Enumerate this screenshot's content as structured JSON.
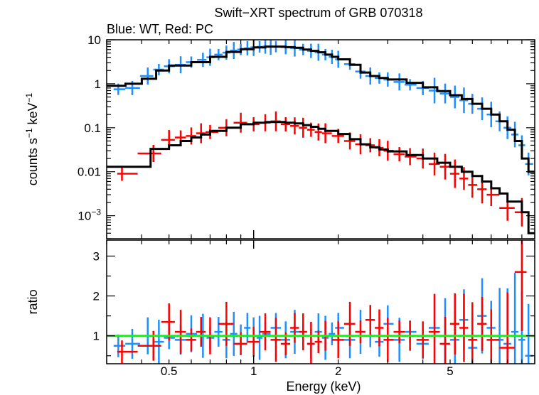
{
  "title": "Swift−XRT spectrum of GRB 070318",
  "subtitle": "Blue: WT, Red: PC",
  "colors": {
    "wt": "#1e8fff",
    "pc": "#ff0000",
    "model": "#000000",
    "unity": "#00ff00"
  },
  "chart_data": [
    {
      "type": "line",
      "panel": "spectrum",
      "xscale": "log",
      "yscale": "log",
      "xlim": [
        0.3,
        10
      ],
      "ylim": [
        0.0003,
        10
      ],
      "ylabel_main": "counts s",
      "ylabel_sup1": "−1",
      "ylabel_mid": " keV",
      "ylabel_sup2": "−1",
      "yticks": [
        {
          "v": 10,
          "label": "10",
          "base": "",
          "exp": ""
        },
        {
          "v": 1,
          "label": "1",
          "base": "",
          "exp": ""
        },
        {
          "v": 0.1,
          "label": "0.1",
          "base": "",
          "exp": ""
        },
        {
          "v": 0.01,
          "label": "0.01",
          "base": "",
          "exp": ""
        },
        {
          "v": 0.001,
          "label": "",
          "base": "10",
          "exp": "−3"
        }
      ],
      "series": [
        {
          "name": "WT",
          "style": "errorbars",
          "color": "#1e8fff",
          "points": [
            [
              0.33,
              0.75
            ],
            [
              0.37,
              0.8
            ],
            [
              0.42,
              1.5
            ],
            [
              0.46,
              2.1
            ],
            [
              0.5,
              2.5
            ],
            [
              0.55,
              2.7
            ],
            [
              0.6,
              3.1
            ],
            [
              0.66,
              3.5
            ],
            [
              0.7,
              4.0
            ],
            [
              0.75,
              4.6
            ],
            [
              0.8,
              5.1
            ],
            [
              0.85,
              5.7
            ],
            [
              0.9,
              6.0
            ],
            [
              0.95,
              6.4
            ],
            [
              1.0,
              6.7
            ],
            [
              1.05,
              6.9
            ],
            [
              1.1,
              7.0
            ],
            [
              1.15,
              7.1
            ],
            [
              1.2,
              7.0
            ],
            [
              1.3,
              6.8
            ],
            [
              1.4,
              6.5
            ],
            [
              1.5,
              6.0
            ],
            [
              1.6,
              5.6
            ],
            [
              1.7,
              5.2
            ],
            [
              1.8,
              4.6
            ],
            [
              1.9,
              4.1
            ],
            [
              2.0,
              3.6
            ],
            [
              2.2,
              2.8
            ],
            [
              2.4,
              1.9
            ],
            [
              2.6,
              1.5
            ],
            [
              2.8,
              1.35
            ],
            [
              3.0,
              1.25
            ],
            [
              3.3,
              1.1
            ],
            [
              3.6,
              0.95
            ],
            [
              4.0,
              0.8
            ],
            [
              4.4,
              0.7
            ],
            [
              4.8,
              0.6
            ],
            [
              5.2,
              0.5
            ],
            [
              5.6,
              0.42
            ],
            [
              6.0,
              0.35
            ],
            [
              6.5,
              0.27
            ],
            [
              7.0,
              0.2
            ],
            [
              7.5,
              0.14
            ],
            [
              8.0,
              0.1
            ],
            [
              8.5,
              0.07
            ],
            [
              9.0,
              0.04
            ],
            [
              9.5,
              0.015
            ]
          ]
        },
        {
          "name": "PC",
          "style": "errorbars",
          "color": "#ff0000",
          "points": [
            [
              0.34,
              0.009
            ],
            [
              0.44,
              0.026
            ],
            [
              0.5,
              0.053
            ],
            [
              0.55,
              0.06
            ],
            [
              0.6,
              0.065
            ],
            [
              0.65,
              0.075
            ],
            [
              0.7,
              0.08
            ],
            [
              0.8,
              0.1
            ],
            [
              0.9,
              0.13
            ],
            [
              1.0,
              0.12
            ],
            [
              1.1,
              0.13
            ],
            [
              1.2,
              0.14
            ],
            [
              1.3,
              0.12
            ],
            [
              1.4,
              0.11
            ],
            [
              1.5,
              0.1
            ],
            [
              1.6,
              0.09
            ],
            [
              1.7,
              0.08
            ],
            [
              1.8,
              0.075
            ],
            [
              2.0,
              0.065
            ],
            [
              2.2,
              0.05
            ],
            [
              2.4,
              0.042
            ],
            [
              2.6,
              0.04
            ],
            [
              2.8,
              0.035
            ],
            [
              3.0,
              0.03
            ],
            [
              3.3,
              0.025
            ],
            [
              3.6,
              0.022
            ],
            [
              4.0,
              0.02
            ],
            [
              4.4,
              0.015
            ],
            [
              4.8,
              0.013
            ],
            [
              5.2,
              0.009
            ],
            [
              5.6,
              0.007
            ],
            [
              6.0,
              0.005
            ],
            [
              6.5,
              0.004
            ],
            [
              7.0,
              0.003
            ],
            [
              8.0,
              0.0015
            ],
            [
              9.0,
              0.0012
            ]
          ]
        },
        {
          "name": "WT model",
          "style": "steps",
          "color": "#000000",
          "points": [
            [
              0.3,
              0.9
            ],
            [
              0.35,
              1.0
            ],
            [
              0.4,
              1.3
            ],
            [
              0.45,
              2.0
            ],
            [
              0.5,
              2.6
            ],
            [
              0.6,
              3.1
            ],
            [
              0.7,
              4.1
            ],
            [
              0.8,
              5.3
            ],
            [
              0.9,
              6.1
            ],
            [
              1.0,
              6.7
            ],
            [
              1.1,
              7.0
            ],
            [
              1.2,
              7.0
            ],
            [
              1.3,
              6.8
            ],
            [
              1.4,
              6.6
            ],
            [
              1.5,
              6.0
            ],
            [
              1.6,
              5.6
            ],
            [
              1.7,
              5.2
            ],
            [
              1.8,
              4.6
            ],
            [
              1.9,
              4.1
            ],
            [
              2.0,
              3.6
            ],
            [
              2.2,
              2.7
            ],
            [
              2.4,
              1.8
            ],
            [
              2.6,
              1.5
            ],
            [
              2.8,
              1.35
            ],
            [
              3.0,
              1.25
            ],
            [
              3.5,
              1.05
            ],
            [
              4.0,
              0.83
            ],
            [
              4.5,
              0.68
            ],
            [
              5.0,
              0.55
            ],
            [
              5.5,
              0.45
            ],
            [
              6.0,
              0.35
            ],
            [
              6.5,
              0.27
            ],
            [
              7.0,
              0.2
            ],
            [
              7.5,
              0.14
            ],
            [
              8.0,
              0.09
            ],
            [
              8.5,
              0.05
            ],
            [
              9.0,
              0.02
            ],
            [
              9.5,
              0.01
            ],
            [
              10.0,
              0.01
            ]
          ]
        },
        {
          "name": "PC model",
          "style": "steps",
          "color": "#000000",
          "points": [
            [
              0.3,
              0.013
            ],
            [
              0.43,
              0.033
            ],
            [
              0.5,
              0.04
            ],
            [
              0.55,
              0.05
            ],
            [
              0.6,
              0.06
            ],
            [
              0.65,
              0.07
            ],
            [
              0.7,
              0.085
            ],
            [
              0.8,
              0.1
            ],
            [
              0.9,
              0.12
            ],
            [
              1.0,
              0.13
            ],
            [
              1.1,
              0.135
            ],
            [
              1.2,
              0.135
            ],
            [
              1.3,
              0.13
            ],
            [
              1.4,
              0.125
            ],
            [
              1.5,
              0.115
            ],
            [
              1.6,
              0.105
            ],
            [
              1.7,
              0.095
            ],
            [
              1.8,
              0.085
            ],
            [
              2.0,
              0.072
            ],
            [
              2.2,
              0.055
            ],
            [
              2.4,
              0.042
            ],
            [
              2.6,
              0.036
            ],
            [
              2.8,
              0.032
            ],
            [
              3.0,
              0.029
            ],
            [
              3.5,
              0.024
            ],
            [
              4.0,
              0.02
            ],
            [
              4.5,
              0.016
            ],
            [
              5.0,
              0.013
            ],
            [
              5.5,
              0.01
            ],
            [
              6.0,
              0.008
            ],
            [
              6.5,
              0.006
            ],
            [
              7.0,
              0.0042
            ],
            [
              7.5,
              0.0032
            ],
            [
              8.0,
              0.0021
            ],
            [
              9.0,
              0.0012
            ],
            [
              9.5,
              0.0004
            ]
          ]
        }
      ]
    },
    {
      "type": "scatter",
      "panel": "ratio",
      "xscale": "log",
      "xlim": [
        0.3,
        10
      ],
      "ylim": [
        0.3,
        3.4
      ],
      "ylabel": "ratio",
      "xlabel": "Energy (keV)",
      "xticks": [
        {
          "v": 0.5,
          "label": "0.5"
        },
        {
          "v": 1,
          "label": "1"
        },
        {
          "v": 2,
          "label": "2"
        },
        {
          "v": 5,
          "label": "5"
        }
      ],
      "yticks": [
        {
          "v": 1,
          "label": "1"
        },
        {
          "v": 2,
          "label": "2"
        },
        {
          "v": 3,
          "label": "3"
        }
      ],
      "unity_line": 1,
      "series": [
        {
          "name": "WT",
          "color": "#1e8fff",
          "points": [
            [
              0.33,
              0.75
            ],
            [
              0.37,
              0.8
            ],
            [
              0.42,
              1.0
            ],
            [
              0.46,
              0.85
            ],
            [
              0.5,
              0.95
            ],
            [
              0.55,
              0.9
            ],
            [
              0.6,
              1.05
            ],
            [
              0.66,
              1.0
            ],
            [
              0.7,
              0.95
            ],
            [
              0.75,
              1.1
            ],
            [
              0.8,
              0.9
            ],
            [
              0.85,
              1.05
            ],
            [
              0.9,
              1.0
            ],
            [
              0.95,
              1.2
            ],
            [
              1.0,
              1.0
            ],
            [
              1.05,
              0.95
            ],
            [
              1.1,
              1.05
            ],
            [
              1.2,
              1.2
            ],
            [
              1.3,
              0.9
            ],
            [
              1.4,
              1.1
            ],
            [
              1.5,
              1.0
            ],
            [
              1.6,
              0.8
            ],
            [
              1.7,
              1.1
            ],
            [
              1.8,
              0.95
            ],
            [
              1.9,
              1.05
            ],
            [
              2.0,
              1.2
            ],
            [
              2.2,
              0.9
            ],
            [
              2.4,
              1.1
            ],
            [
              2.6,
              1.0
            ],
            [
              2.8,
              0.85
            ],
            [
              3.0,
              1.3
            ],
            [
              3.3,
              0.9
            ],
            [
              3.6,
              1.1
            ],
            [
              4.0,
              0.8
            ],
            [
              4.4,
              1.2
            ],
            [
              4.8,
              1.0
            ],
            [
              5.2,
              0.9
            ],
            [
              5.6,
              1.4
            ],
            [
              6.0,
              0.7
            ],
            [
              6.5,
              1.5
            ],
            [
              7.0,
              1.2
            ],
            [
              7.5,
              0.9
            ],
            [
              8.0,
              0.8
            ],
            [
              8.5,
              1.1
            ],
            [
              9.0,
              0.9
            ],
            [
              9.5,
              0.5
            ]
          ]
        },
        {
          "name": "PC",
          "color": "#ff0000",
          "points": [
            [
              0.34,
              0.6
            ],
            [
              0.44,
              0.75
            ],
            [
              0.5,
              1.35
            ],
            [
              0.55,
              1.1
            ],
            [
              0.6,
              0.9
            ],
            [
              0.65,
              1.1
            ],
            [
              0.7,
              1.0
            ],
            [
              0.8,
              1.3
            ],
            [
              0.9,
              0.8
            ],
            [
              1.0,
              0.85
            ],
            [
              1.1,
              1.1
            ],
            [
              1.2,
              0.9
            ],
            [
              1.3,
              0.8
            ],
            [
              1.4,
              1.2
            ],
            [
              1.5,
              1.1
            ],
            [
              1.6,
              0.8
            ],
            [
              1.7,
              0.85
            ],
            [
              1.8,
              1.0
            ],
            [
              2.0,
              0.9
            ],
            [
              2.2,
              1.3
            ],
            [
              2.4,
              1.1
            ],
            [
              2.6,
              1.4
            ],
            [
              2.8,
              1.2
            ],
            [
              3.0,
              0.9
            ],
            [
              3.3,
              1.1
            ],
            [
              3.6,
              1.0
            ],
            [
              4.0,
              0.9
            ],
            [
              4.4,
              1.1
            ],
            [
              4.8,
              0.8
            ],
            [
              5.2,
              1.3
            ],
            [
              5.6,
              1.2
            ],
            [
              6.0,
              0.9
            ],
            [
              6.5,
              1.3
            ],
            [
              7.0,
              0.9
            ],
            [
              8.0,
              0.7
            ],
            [
              9.0,
              2.6
            ]
          ]
        }
      ]
    }
  ]
}
